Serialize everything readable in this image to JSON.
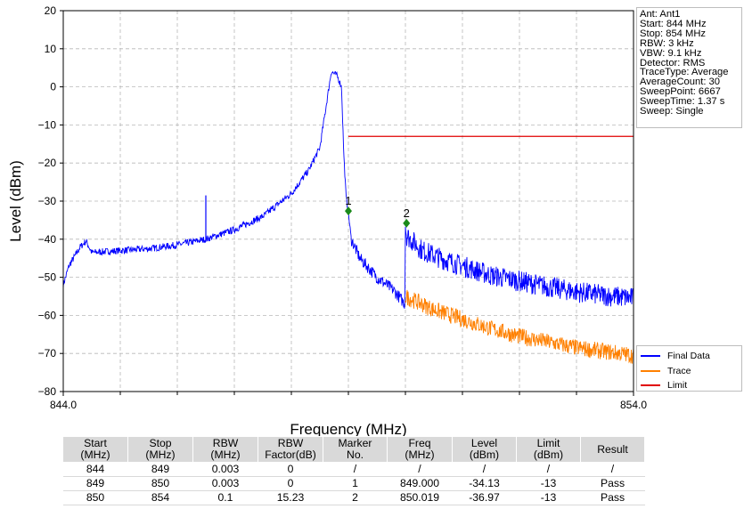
{
  "chart_data": {
    "type": "line",
    "xlabel": "Frequency (MHz)",
    "ylabel": "Level (dBm)",
    "xlim": [
      844,
      854
    ],
    "ylim": [
      -80,
      20
    ],
    "y_ticks": [
      20,
      10,
      0,
      -10,
      -20,
      -30,
      -40,
      -50,
      -60,
      -70,
      -80
    ],
    "y_tick_labels": [
      "20",
      "10",
      "0",
      "−10",
      "−20",
      "−30",
      "−40",
      "−50",
      "−60",
      "−70",
      "−80"
    ],
    "x_tick_labels": [
      "844.0",
      "854.0"
    ],
    "x_minor_ticks": [
      845,
      846,
      847,
      848,
      849,
      850,
      851,
      852,
      853
    ],
    "grid": true,
    "legend_position": "lower-right-outside",
    "series": [
      {
        "name": "Final Data",
        "color": "#0000ff",
        "x": [
          844.0,
          844.1,
          844.3,
          844.4,
          844.5,
          845.0,
          845.5,
          846.0,
          846.5,
          847.0,
          847.5,
          848.0,
          848.3,
          848.5,
          848.7,
          848.8,
          848.88,
          848.92,
          848.96,
          849.0,
          849.05,
          849.2,
          849.5,
          849.8,
          849.99,
          850.0,
          850.02,
          850.3,
          850.7,
          851.0,
          851.5,
          852.0,
          852.5,
          853.0,
          853.5,
          854.0
        ],
        "y": [
          -52,
          -47,
          -42,
          -40.5,
          -43.5,
          -43,
          -42.5,
          -41.5,
          -40,
          -37.5,
          -34,
          -28,
          -22,
          -16,
          4,
          3,
          0,
          -18,
          -29,
          -33,
          -40,
          -45,
          -50,
          -53.5,
          -57,
          -36,
          -39,
          -43,
          -45.5,
          -47,
          -49.5,
          -51,
          -52.5,
          -53.8,
          -54.8,
          -55.5
        ],
        "spurs": [
          {
            "x": 846.5,
            "y": -28.5
          }
        ]
      },
      {
        "name": "Trace",
        "color": "#ff8000",
        "x": [
          850.0,
          850.5,
          851.0,
          851.5,
          852.0,
          852.5,
          853.0,
          853.5,
          854.0
        ],
        "y": [
          -55,
          -58.5,
          -61,
          -63.5,
          -65.5,
          -67,
          -68.5,
          -69.5,
          -70.5
        ]
      },
      {
        "name": "Limit",
        "color": "#e00000",
        "x": [
          849.0,
          854.0
        ],
        "y": [
          -13,
          -13
        ]
      }
    ],
    "markers": [
      {
        "label": "1",
        "x": 849.0,
        "y": -32.6,
        "color": "#1a8a1a"
      },
      {
        "label": "2",
        "x": 850.019,
        "y": -35.8,
        "color": "#1a8a1a"
      }
    ]
  },
  "info": {
    "lines": [
      "Ant: Ant1",
      "Start: 844 MHz",
      "Stop: 854 MHz",
      "RBW: 3 kHz",
      "VBW: 9.1 kHz",
      "Detector: RMS",
      "TraceType: Average",
      "AverageCount: 30",
      "SweepPoint: 6667",
      "SweepTime: 1.37 s",
      "Sweep: Single"
    ]
  },
  "legend": {
    "items": [
      {
        "label": "Final Data",
        "color": "#0000ff"
      },
      {
        "label": "Trace",
        "color": "#ff8000"
      },
      {
        "label": "Limit",
        "color": "#e00000"
      }
    ]
  },
  "table": {
    "headers": [
      [
        "Start",
        "(MHz)"
      ],
      [
        "Stop",
        "(MHz)"
      ],
      [
        "RBW",
        "(MHz)"
      ],
      [
        "RBW",
        "Factor(dB)"
      ],
      [
        "Marker",
        "No."
      ],
      [
        "Freq",
        "(MHz)"
      ],
      [
        "Level",
        "(dBm)"
      ],
      [
        "Limit",
        "(dBm)"
      ],
      [
        "Result",
        ""
      ]
    ],
    "rows": [
      [
        "844",
        "849",
        "0.003",
        "0",
        "/",
        "/",
        "/",
        "/",
        "/"
      ],
      [
        "849",
        "850",
        "0.003",
        "0",
        "1",
        "849.000",
        "-34.13",
        "-13",
        "Pass"
      ],
      [
        "850",
        "854",
        "0.1",
        "15.23",
        "2",
        "850.019",
        "-36.97",
        "-13",
        "Pass"
      ]
    ]
  }
}
